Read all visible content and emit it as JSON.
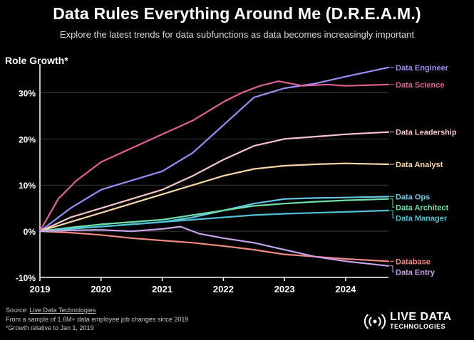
{
  "header": {
    "title": "Data Rules Everything Around Me (D.R.E.A.M.)",
    "subtitle": "Explore the latest trends for data subfunctions as data becomes increasingly important"
  },
  "footer": {
    "source_prefix": "Source: ",
    "source_link": "Live Data Technologies",
    "note1": "From a sample of 1.6M+ data employee job changes since 2019",
    "note2": "*Growth relative to Jan 1, 2019"
  },
  "brand": {
    "name": "LIVE DATA",
    "sub": "TECHNOLOGIES"
  },
  "chart_data": {
    "type": "line",
    "ylabel": "Role Growth*",
    "xlim": [
      2019,
      2024.7
    ],
    "ylim": [
      -10,
      35
    ],
    "x_ticks": [
      2019,
      2020,
      2021,
      2022,
      2023,
      2024
    ],
    "x_tick_labels": [
      "2019",
      "2020",
      "2021",
      "2022",
      "2023",
      "2024"
    ],
    "y_ticks": [
      -10,
      0,
      10,
      20,
      30
    ],
    "y_tick_labels": [
      "-10%",
      "0%",
      "10%",
      "20%",
      "30%"
    ],
    "series": [
      {
        "name": "Data Engineer",
        "color": "#9b8cf4",
        "x": [
          2019,
          2019.5,
          2020,
          2020.5,
          2021,
          2021.5,
          2022,
          2022.5,
          2023,
          2023.5,
          2024,
          2024.7
        ],
        "y": [
          0,
          5,
          9,
          11,
          13,
          17,
          23,
          29,
          31,
          32,
          33.5,
          35.5
        ]
      },
      {
        "name": "Data Science",
        "color": "#e0609a",
        "x": [
          2019,
          2019.3,
          2019.6,
          2020,
          2020.5,
          2021,
          2021.5,
          2022,
          2022.3,
          2022.6,
          2022.9,
          2023.3,
          2023.7,
          2024,
          2024.7
        ],
        "y": [
          0,
          7,
          11,
          15,
          18,
          21,
          24,
          28,
          30,
          31.5,
          32.5,
          31.5,
          31.8,
          31.5,
          31.8
        ]
      },
      {
        "name": "Data Leadership",
        "color": "#f7c5c9",
        "x": [
          2019,
          2019.5,
          2020,
          2020.5,
          2021,
          2021.5,
          2022,
          2022.5,
          2023,
          2023.5,
          2024,
          2024.7
        ],
        "y": [
          0,
          3,
          5,
          7,
          9,
          12,
          15.5,
          18.5,
          20,
          20.5,
          21,
          21.5
        ]
      },
      {
        "name": "Data Analyst",
        "color": "#f6d7a3",
        "x": [
          2019,
          2019.5,
          2020,
          2020.5,
          2021,
          2021.5,
          2022,
          2022.5,
          2023,
          2023.5,
          2024,
          2024.7
        ],
        "y": [
          0,
          2,
          4,
          6,
          8,
          10,
          12,
          13.5,
          14.2,
          14.5,
          14.7,
          14.5
        ]
      },
      {
        "name": "Data Ops",
        "color": "#67c8e6",
        "x": [
          2019,
          2019.5,
          2020,
          2020.5,
          2021,
          2021.5,
          2022,
          2022.5,
          2023,
          2023.5,
          2024,
          2024.7
        ],
        "y": [
          0,
          0.6,
          1,
          1.5,
          2,
          3,
          4.5,
          6,
          7,
          7.2,
          7.3,
          7.5
        ]
      },
      {
        "name": "Data Architect",
        "color": "#6ee1a8",
        "x": [
          2019,
          2019.5,
          2020,
          2020.5,
          2021,
          2021.5,
          2022,
          2022.5,
          2023,
          2023.5,
          2024,
          2024.7
        ],
        "y": [
          0,
          0.8,
          1.5,
          2,
          2.5,
          3.5,
          4.5,
          5.5,
          6,
          6.4,
          6.7,
          7
        ]
      },
      {
        "name": "Data Manager",
        "color": "#4fc1d6",
        "x": [
          2019,
          2019.5,
          2020,
          2020.5,
          2021,
          2021.5,
          2022,
          2022.5,
          2023,
          2023.5,
          2024,
          2024.7
        ],
        "y": [
          0,
          0.5,
          1,
          1.5,
          2,
          2.5,
          3,
          3.5,
          3.8,
          4,
          4.2,
          4.5
        ]
      },
      {
        "name": "Database",
        "color": "#f08a80",
        "x": [
          2019,
          2019.5,
          2020,
          2020.5,
          2021,
          2021.5,
          2022,
          2022.5,
          2023,
          2023.5,
          2024,
          2024.7
        ],
        "y": [
          0,
          -0.3,
          -0.8,
          -1.5,
          -2,
          -2.5,
          -3.2,
          -4,
          -5,
          -5.5,
          -6,
          -6.5
        ]
      },
      {
        "name": "Data Entry",
        "color": "#c9a2ea",
        "x": [
          2019,
          2019.5,
          2020,
          2020.5,
          2021,
          2021.3,
          2021.6,
          2022,
          2022.5,
          2023,
          2023.5,
          2024,
          2024.7
        ],
        "y": [
          0,
          0.2,
          0.3,
          0,
          0.5,
          1,
          -0.5,
          -1.5,
          -2.5,
          -4,
          -5.5,
          -6.5,
          -7.5
        ]
      }
    ]
  }
}
